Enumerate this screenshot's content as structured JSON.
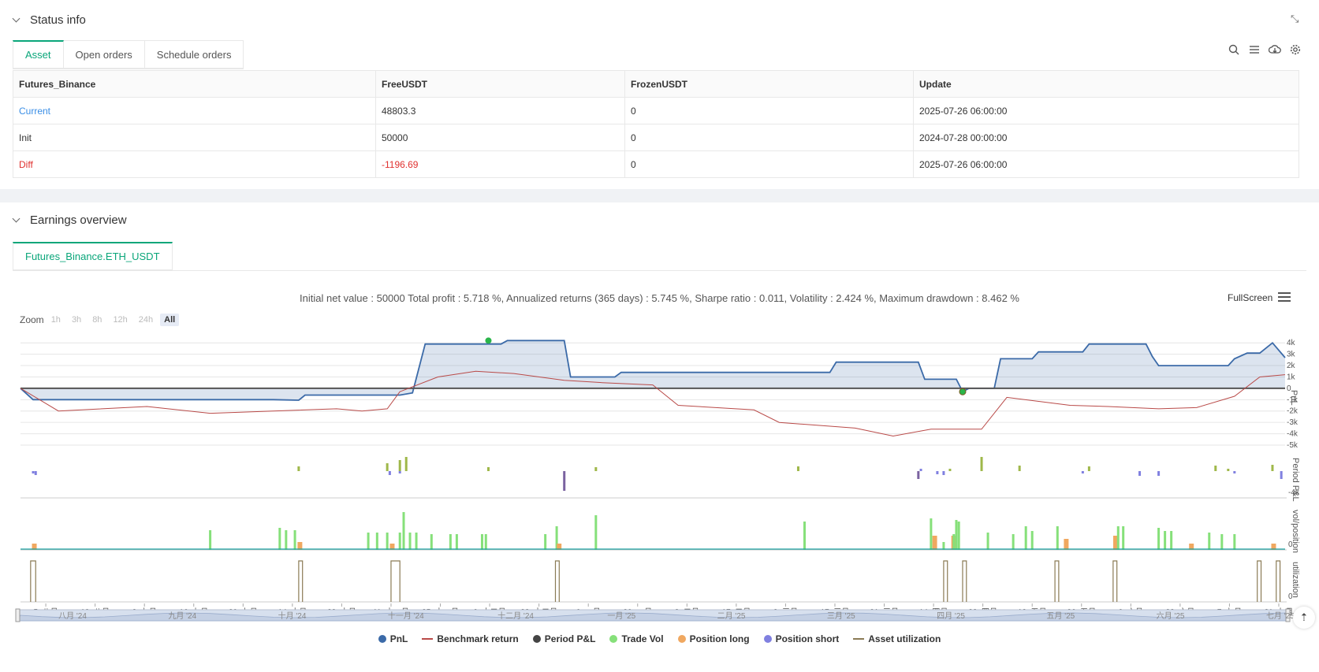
{
  "status": {
    "title": "Status info",
    "tabs": [
      {
        "label": "Asset"
      },
      {
        "label": "Open orders"
      },
      {
        "label": "Schedule orders"
      }
    ],
    "table": {
      "headers": [
        "Futures_Binance",
        "FreeUSDT",
        "FrozenUSDT",
        "Update"
      ],
      "rows": [
        {
          "label": "Current",
          "free": "48803.3",
          "frozen": "0",
          "update": "2025-07-26 06:00:00"
        },
        {
          "label": "Init",
          "free": "50000",
          "frozen": "0",
          "update": "2024-07-28 00:00:00"
        },
        {
          "label": "Diff",
          "free": "-1196.69",
          "frozen": "0",
          "update": "2025-07-26 06:00:00"
        }
      ]
    }
  },
  "earnings": {
    "title": "Earnings overview",
    "tab": "Futures_Binance.ETH_USDT",
    "summary": "Initial net value : 50000 Total profit : 5.718 %, Annualized returns (365 days) : 5.745 %, Sharpe ratio : 0.011, Volatility : 2.424 %, Maximum drawdown : 8.462 %",
    "fullscreen": "FullScreen",
    "zoom_label": "Zoom",
    "zoom_options": [
      "1h",
      "3h",
      "8h",
      "12h",
      "24h",
      "All"
    ],
    "legend": [
      "PnL",
      "Benchmark return",
      "Period P&L",
      "Trade Vol",
      "Position long",
      "Position short",
      "Asset utilization"
    ]
  },
  "colors": {
    "accent": "#0aa67a",
    "link": "#3a8ee6",
    "negative": "#e0312f",
    "pnl": "#3b6aa8",
    "benchmark": "#b94a48",
    "period": "#444444",
    "tradevol": "#86e07a",
    "poslong": "#f0a860",
    "posshort": "#8080e0",
    "util": "#8b7b55"
  },
  "chart_data": {
    "type": "line",
    "x_ticks": [
      "5. 八月",
      "19. 八月",
      "2. 九月",
      "16. 九月",
      "30. 九月",
      "14. 十月",
      "28. 十月",
      "11. 十一月",
      "25. 十一月",
      "9. 十二月",
      "23. 十二月",
      "6. 一月",
      "20. 一月",
      "3. 二月",
      "17. 二月",
      "3. 三月",
      "17. 三月",
      "31. 三月",
      "14. 四月",
      "28. 四月",
      "12. 五月",
      "26. 五月",
      "9. 六月",
      "23. 六月",
      "7. 七月",
      "21. 七月"
    ],
    "navigator_ticks": [
      "八月 '24",
      "九月 '24",
      "十月 '24",
      "十一月 '24",
      "十二月 '24",
      "一月 '25",
      "二月 '25",
      "三月 '25",
      "四月 '25",
      "五月 '25",
      "六月 '25",
      "七月 '25"
    ],
    "pnl_axis": {
      "ticks": [
        "4k",
        "3k",
        "2k",
        "1k",
        "0",
        "-1k",
        "-2k",
        "-3k",
        "-4k",
        "-5k"
      ],
      "ylim": [
        -5000,
        4500
      ],
      "title": "PnL"
    },
    "period_axis": {
      "ticks": [
        "-4k"
      ],
      "title": "Period P&L"
    },
    "vol_axis": {
      "ticks": [
        "0"
      ],
      "title": "vol/position"
    },
    "util_axis": {
      "ticks": [
        "0"
      ],
      "title": "utilization"
    },
    "series": [
      {
        "name": "PnL",
        "values": [
          [
            0,
            0
          ],
          [
            0.01,
            -1000
          ],
          [
            0.2,
            -1000
          ],
          [
            0.22,
            -1050
          ],
          [
            0.225,
            -600
          ],
          [
            0.3,
            -600
          ],
          [
            0.31,
            -400
          ],
          [
            0.32,
            3900
          ],
          [
            0.38,
            3900
          ],
          [
            0.385,
            4200
          ],
          [
            0.43,
            4200
          ],
          [
            0.435,
            1000
          ],
          [
            0.47,
            1000
          ],
          [
            0.475,
            1400
          ],
          [
            0.64,
            1400
          ],
          [
            0.645,
            2300
          ],
          [
            0.71,
            2300
          ],
          [
            0.715,
            800
          ],
          [
            0.74,
            800
          ],
          [
            0.745,
            -300
          ],
          [
            0.75,
            0
          ],
          [
            0.77,
            0
          ],
          [
            0.775,
            2600
          ],
          [
            0.8,
            2600
          ],
          [
            0.805,
            3200
          ],
          [
            0.84,
            3200
          ],
          [
            0.845,
            3900
          ],
          [
            0.89,
            3900
          ],
          [
            0.895,
            2800
          ],
          [
            0.9,
            2000
          ],
          [
            0.93,
            2000
          ],
          [
            0.955,
            2000
          ],
          [
            0.96,
            2600
          ],
          [
            0.97,
            3100
          ],
          [
            0.98,
            3100
          ],
          [
            0.99,
            4000
          ],
          [
            1.0,
            2700
          ]
        ]
      },
      {
        "name": "Benchmark return",
        "values": [
          [
            0,
            0
          ],
          [
            0.03,
            -2000
          ],
          [
            0.1,
            -1600
          ],
          [
            0.15,
            -2200
          ],
          [
            0.2,
            -2000
          ],
          [
            0.25,
            -1800
          ],
          [
            0.27,
            -2000
          ],
          [
            0.29,
            -1800
          ],
          [
            0.3,
            -300
          ],
          [
            0.33,
            1000
          ],
          [
            0.36,
            1500
          ],
          [
            0.39,
            1300
          ],
          [
            0.43,
            700
          ],
          [
            0.46,
            500
          ],
          [
            0.5,
            300
          ],
          [
            0.52,
            -1500
          ],
          [
            0.58,
            -1900
          ],
          [
            0.6,
            -3000
          ],
          [
            0.66,
            -3500
          ],
          [
            0.69,
            -4200
          ],
          [
            0.72,
            -3600
          ],
          [
            0.76,
            -3600
          ],
          [
            0.78,
            -800
          ],
          [
            0.83,
            -1500
          ],
          [
            0.86,
            -1600
          ],
          [
            0.9,
            -1800
          ],
          [
            0.93,
            -1700
          ],
          [
            0.96,
            -700
          ],
          [
            0.98,
            1000
          ],
          [
            1.0,
            1200
          ]
        ]
      }
    ]
  }
}
